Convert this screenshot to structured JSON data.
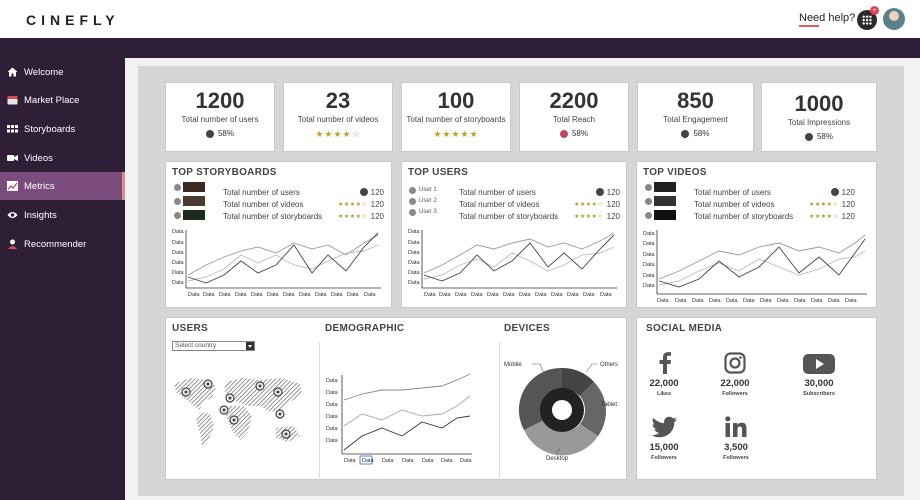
{
  "brand": {
    "logo": "CINEFLY"
  },
  "header": {
    "help": "Need help?",
    "apps_badge": "+"
  },
  "sidebar": {
    "items": [
      {
        "label": "Welcome",
        "icon": "home-icon"
      },
      {
        "label": "Market Place",
        "icon": "store-icon"
      },
      {
        "label": "Storyboards",
        "icon": "grid-icon"
      },
      {
        "label": "Videos",
        "icon": "video-camera-icon"
      },
      {
        "label": "Metrics",
        "icon": "chart-icon",
        "active": true
      },
      {
        "label": "Insights",
        "icon": "eye-icon"
      },
      {
        "label": "Recommender",
        "icon": "person-icon"
      }
    ]
  },
  "kpis": [
    {
      "value": "1200",
      "label": "Total number of users",
      "sub": "58%",
      "sub_type": "dark"
    },
    {
      "value": "23",
      "label": "Total number of videos",
      "rating": 4
    },
    {
      "value": "100",
      "label": "Total number of storyboards",
      "rating": 5
    },
    {
      "value": "2200",
      "label": "Total Reach",
      "sub": "58%",
      "sub_type": "red"
    },
    {
      "value": "850",
      "label": "Total Engagement",
      "sub": "58%",
      "sub_type": "dark"
    },
    {
      "value": "1000",
      "label": "Total Impressions",
      "sub": "58%",
      "sub_type": "dark"
    }
  ],
  "panels": [
    {
      "title": "TOP STORYBOARDS",
      "items_type": "thumb",
      "stats": [
        {
          "label": "Total number of users",
          "value": "120"
        },
        {
          "label": "Total number of videos",
          "value": "120"
        },
        {
          "label": "Total number of storyboards",
          "value": "120"
        }
      ]
    },
    {
      "title": "TOP USERS",
      "items_type": "user",
      "users": [
        "User 1",
        "User 2",
        "User 3"
      ],
      "stats": [
        {
          "label": "Total number of users",
          "value": "120"
        },
        {
          "label": "Total number of videos",
          "value": "120"
        },
        {
          "label": "Total number of storyboards",
          "value": "120"
        }
      ]
    },
    {
      "title": "TOP VIDEOS",
      "items_type": "thumb",
      "stats": [
        {
          "label": "Total number of users",
          "value": "120"
        },
        {
          "label": "Total number of videos",
          "value": "120"
        },
        {
          "label": "Total number of storyboards",
          "value": "120"
        }
      ]
    }
  ],
  "axis_text": "Data",
  "users_section": {
    "title": "USERS",
    "select_placeholder": "Select country"
  },
  "demographic": {
    "title": "DEMOGRAPHIC"
  },
  "devices": {
    "title": "DEVICES",
    "labels": {
      "mobile": "Mobile",
      "others": "Others",
      "tablet": "Tablet",
      "desktop": "Desktop"
    }
  },
  "social": {
    "title": "SOCIAL MEDIA",
    "items": [
      {
        "icon": "facebook-icon",
        "value": "22,000",
        "label": "Likes"
      },
      {
        "icon": "instagram-icon",
        "value": "22,000",
        "label": "Followers"
      },
      {
        "icon": "youtube-icon",
        "value": "30,000",
        "label": "Subscribers"
      },
      {
        "icon": "twitter-icon",
        "value": "15,000",
        "label": "Followers"
      },
      {
        "icon": "linkedin-icon",
        "value": "3,500",
        "label": "Followers"
      }
    ]
  }
}
